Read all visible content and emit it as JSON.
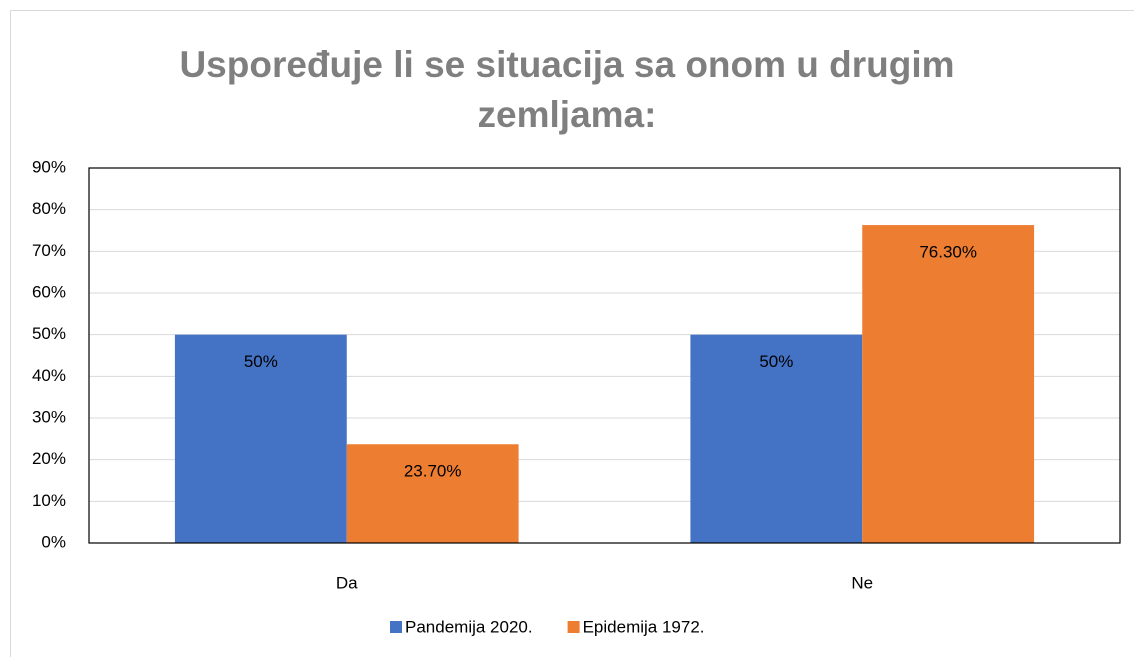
{
  "chart_data": {
    "type": "bar",
    "title": "Uspoređuje li se situacija sa onom u drugim zemljama:",
    "categories": [
      "Da",
      "Ne"
    ],
    "series": [
      {
        "name": "Pandemija 2020.",
        "color": "#4472c4",
        "values": [
          50,
          50
        ],
        "value_labels": [
          "50%",
          "50%"
        ]
      },
      {
        "name": "Epidemija 1972.",
        "color": "#ed7d31",
        "values": [
          23.7,
          76.3
        ],
        "value_labels": [
          "23.70%",
          "76.30%"
        ]
      }
    ],
    "ylim": [
      0,
      90
    ],
    "yticks": [
      {
        "value": 0,
        "label": "0%"
      },
      {
        "value": 10,
        "label": "10%"
      },
      {
        "value": 20,
        "label": "20%"
      },
      {
        "value": 30,
        "label": "30%"
      },
      {
        "value": 40,
        "label": "40%"
      },
      {
        "value": 50,
        "label": "50%"
      },
      {
        "value": 60,
        "label": "60%"
      },
      {
        "value": 70,
        "label": "70%"
      },
      {
        "value": 80,
        "label": "80%"
      },
      {
        "value": 90,
        "label": "90%"
      }
    ],
    "grid": true,
    "legend": "bottom"
  }
}
